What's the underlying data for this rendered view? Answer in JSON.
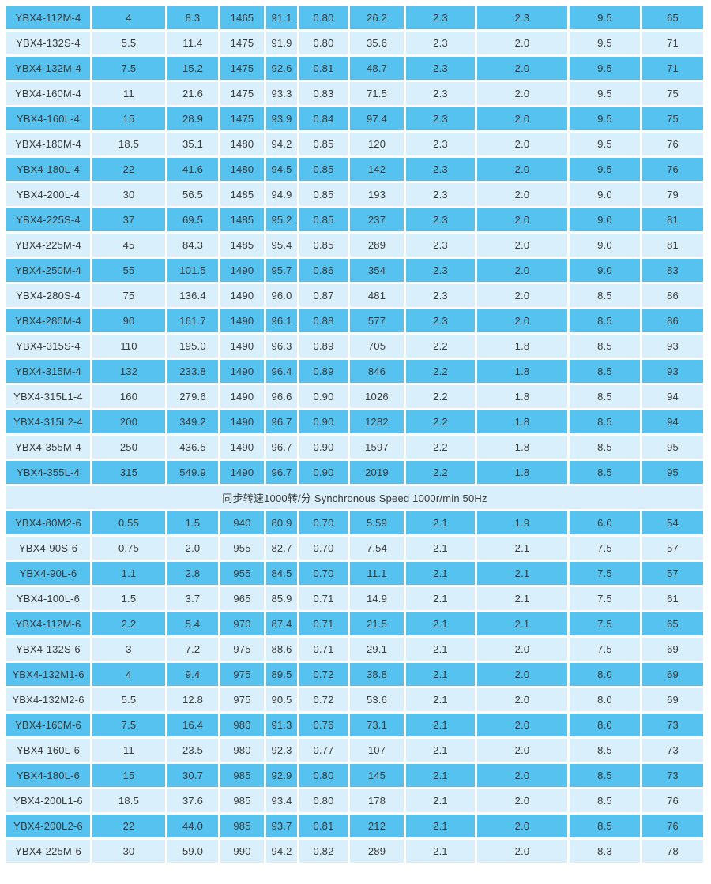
{
  "colors": {
    "row_dark": "#55C2EF",
    "row_light": "#D9EFFB",
    "section_band": "#D9EFFB",
    "cell_text": "#3A3A3A",
    "gap": "#FFFFFF"
  },
  "table": {
    "column_count": 11,
    "sections": [
      {
        "title": null,
        "rows": [
          [
            "YBX4-112M-4",
            "4",
            "8.3",
            "1465",
            "91.1",
            "0.80",
            "26.2",
            "2.3",
            "2.3",
            "9.5",
            "65"
          ],
          [
            "YBX4-132S-4",
            "5.5",
            "11.4",
            "1475",
            "91.9",
            "0.80",
            "35.6",
            "2.3",
            "2.0",
            "9.5",
            "71"
          ],
          [
            "YBX4-132M-4",
            "7.5",
            "15.2",
            "1475",
            "92.6",
            "0.81",
            "48.7",
            "2.3",
            "2.0",
            "9.5",
            "71"
          ],
          [
            "YBX4-160M-4",
            "11",
            "21.6",
            "1475",
            "93.3",
            "0.83",
            "71.5",
            "2.3",
            "2.0",
            "9.5",
            "75"
          ],
          [
            "YBX4-160L-4",
            "15",
            "28.9",
            "1475",
            "93.9",
            "0.84",
            "97.4",
            "2.3",
            "2.0",
            "9.5",
            "75"
          ],
          [
            "YBX4-180M-4",
            "18.5",
            "35.1",
            "1480",
            "94.2",
            "0.85",
            "120",
            "2.3",
            "2.0",
            "9.5",
            "76"
          ],
          [
            "YBX4-180L-4",
            "22",
            "41.6",
            "1480",
            "94.5",
            "0.85",
            "142",
            "2.3",
            "2.0",
            "9.5",
            "76"
          ],
          [
            "YBX4-200L-4",
            "30",
            "56.5",
            "1485",
            "94.9",
            "0.85",
            "193",
            "2.3",
            "2.0",
            "9.0",
            "79"
          ],
          [
            "YBX4-225S-4",
            "37",
            "69.5",
            "1485",
            "95.2",
            "0.85",
            "237",
            "2.3",
            "2.0",
            "9.0",
            "81"
          ],
          [
            "YBX4-225M-4",
            "45",
            "84.3",
            "1485",
            "95.4",
            "0.85",
            "289",
            "2.3",
            "2.0",
            "9.0",
            "81"
          ],
          [
            "YBX4-250M-4",
            "55",
            "101.5",
            "1490",
            "95.7",
            "0.86",
            "354",
            "2.3",
            "2.0",
            "9.0",
            "83"
          ],
          [
            "YBX4-280S-4",
            "75",
            "136.4",
            "1490",
            "96.0",
            "0.87",
            "481",
            "2.3",
            "2.0",
            "8.5",
            "86"
          ],
          [
            "YBX4-280M-4",
            "90",
            "161.7",
            "1490",
            "96.1",
            "0.88",
            "577",
            "2.3",
            "2.0",
            "8.5",
            "86"
          ],
          [
            "YBX4-315S-4",
            "110",
            "195.0",
            "1490",
            "96.3",
            "0.89",
            "705",
            "2.2",
            "1.8",
            "8.5",
            "93"
          ],
          [
            "YBX4-315M-4",
            "132",
            "233.8",
            "1490",
            "96.4",
            "0.89",
            "846",
            "2.2",
            "1.8",
            "8.5",
            "93"
          ],
          [
            "YBX4-315L1-4",
            "160",
            "279.6",
            "1490",
            "96.6",
            "0.90",
            "1026",
            "2.2",
            "1.8",
            "8.5",
            "94"
          ],
          [
            "YBX4-315L2-4",
            "200",
            "349.2",
            "1490",
            "96.7",
            "0.90",
            "1282",
            "2.2",
            "1.8",
            "8.5",
            "94"
          ],
          [
            "YBX4-355M-4",
            "250",
            "436.5",
            "1490",
            "96.7",
            "0.90",
            "1597",
            "2.2",
            "1.8",
            "8.5",
            "95"
          ],
          [
            "YBX4-355L-4",
            "315",
            "549.9",
            "1490",
            "96.7",
            "0.90",
            "2019",
            "2.2",
            "1.8",
            "8.5",
            "95"
          ]
        ]
      },
      {
        "title": "同步转速1000转/分 Synchronous Speed 1000r/min 50Hz",
        "rows": [
          [
            "YBX4-80M2-6",
            "0.55",
            "1.5",
            "940",
            "80.9",
            "0.70",
            "5.59",
            "2.1",
            "1.9",
            "6.0",
            "54"
          ],
          [
            "YBX4-90S-6",
            "0.75",
            "2.0",
            "955",
            "82.7",
            "0.70",
            "7.54",
            "2.1",
            "2.1",
            "7.5",
            "57"
          ],
          [
            "YBX4-90L-6",
            "1.1",
            "2.8",
            "955",
            "84.5",
            "0.70",
            "11.1",
            "2.1",
            "2.1",
            "7.5",
            "57"
          ],
          [
            "YBX4-100L-6",
            "1.5",
            "3.7",
            "965",
            "85.9",
            "0.71",
            "14.9",
            "2.1",
            "2.1",
            "7.5",
            "61"
          ],
          [
            "YBX4-112M-6",
            "2.2",
            "5.4",
            "970",
            "87.4",
            "0.71",
            "21.5",
            "2.1",
            "2.1",
            "7.5",
            "65"
          ],
          [
            "YBX4-132S-6",
            "3",
            "7.2",
            "975",
            "88.6",
            "0.71",
            "29.1",
            "2.1",
            "2.0",
            "7.5",
            "69"
          ],
          [
            "YBX4-132M1-6",
            "4",
            "9.4",
            "975",
            "89.5",
            "0.72",
            "38.8",
            "2.1",
            "2.0",
            "8.0",
            "69"
          ],
          [
            "YBX4-132M2-6",
            "5.5",
            "12.8",
            "975",
            "90.5",
            "0.72",
            "53.6",
            "2.1",
            "2.0",
            "8.0",
            "69"
          ],
          [
            "YBX4-160M-6",
            "7.5",
            "16.4",
            "980",
            "91.3",
            "0.76",
            "73.1",
            "2.1",
            "2.0",
            "8.0",
            "73"
          ],
          [
            "YBX4-160L-6",
            "11",
            "23.5",
            "980",
            "92.3",
            "0.77",
            "107",
            "2.1",
            "2.0",
            "8.5",
            "73"
          ],
          [
            "YBX4-180L-6",
            "15",
            "30.7",
            "985",
            "92.9",
            "0.80",
            "145",
            "2.1",
            "2.0",
            "8.5",
            "73"
          ],
          [
            "YBX4-200L1-6",
            "18.5",
            "37.6",
            "985",
            "93.4",
            "0.80",
            "178",
            "2.1",
            "2.0",
            "8.5",
            "76"
          ],
          [
            "YBX4-200L2-6",
            "22",
            "44.0",
            "985",
            "93.7",
            "0.81",
            "212",
            "2.1",
            "2.0",
            "8.5",
            "76"
          ],
          [
            "YBX4-225M-6",
            "30",
            "59.0",
            "990",
            "94.2",
            "0.82",
            "289",
            "2.1",
            "2.0",
            "8.3",
            "78"
          ]
        ]
      }
    ]
  }
}
